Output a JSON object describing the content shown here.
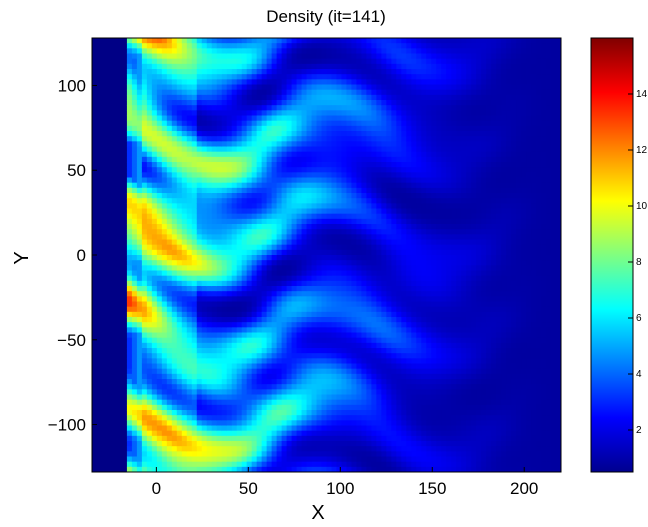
{
  "chart_data": {
    "type": "heatmap",
    "title": "Density (it=141)",
    "xlabel": "X",
    "ylabel": "Y",
    "xlim": [
      -35,
      220
    ],
    "ylim": [
      -128,
      128
    ],
    "xticks": [
      0,
      50,
      100,
      150,
      200
    ],
    "yticks": [
      -100,
      -50,
      0,
      50,
      100
    ],
    "colormap": "jet",
    "colorbar": {
      "range": [
        0.5,
        16
      ],
      "ticks": [
        2,
        4,
        6,
        8,
        10,
        12,
        14
      ]
    },
    "field": {
      "description_values": "density field: high (12-16) near x=0..20 at the wall, turbulent fingers extending to x~200, background ~1",
      "wall_x": -15,
      "peak_density": 15,
      "background_density": 1
    }
  },
  "colors": {
    "jet_0": "#00008f",
    "jet_1": "#0000ff",
    "jet_2": "#0080ff",
    "jet_3": "#00ffff",
    "jet_4": "#80ff80",
    "jet_5": "#ffff00",
    "jet_6": "#ff8000",
    "jet_7": "#ff0000",
    "jet_8": "#800000"
  }
}
